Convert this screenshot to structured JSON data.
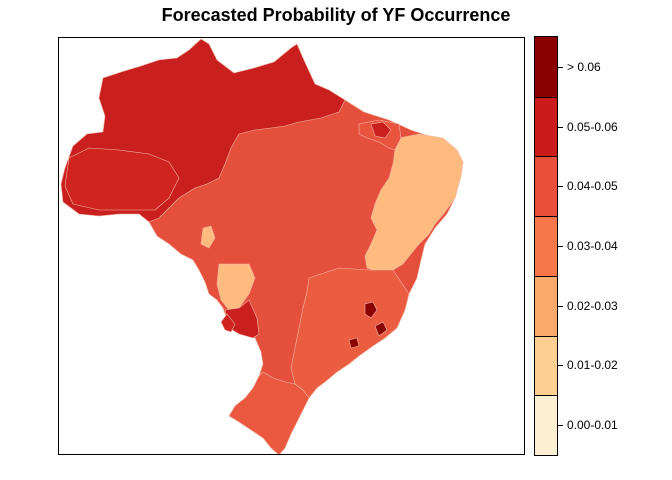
{
  "title": "Forecasted Probability of YF Occurrence",
  "map": {
    "region_fill_colors": {
      "north": "#c9201f",
      "amazon_core": "#cf2420",
      "central": "#e5503c",
      "south": "#e9583f",
      "southeast": "#ea5d41",
      "northeast_low": "#fdbb80",
      "northeast_coast": "#e9543e",
      "hotspot": "#8c0000",
      "small_patch": "#f0754d"
    },
    "hotspots": [
      "hotspot-southeast-1",
      "hotspot-southeast-2",
      "hotspot-south-coast"
    ]
  },
  "legend": {
    "classes": [
      {
        "label": "> 0.06",
        "color": "#8b0000"
      },
      {
        "label": "0.05-0.06",
        "color": "#cb1b1b"
      },
      {
        "label": "0.04-0.05",
        "color": "#e8503b"
      },
      {
        "label": "0.03-0.04",
        "color": "#f6784a"
      },
      {
        "label": "0.02-0.03",
        "color": "#fcaa6c"
      },
      {
        "label": "0.01-0.02",
        "color": "#fdcf91"
      },
      {
        "label": "0.00-0.01",
        "color": "#fdefd2"
      }
    ]
  }
}
